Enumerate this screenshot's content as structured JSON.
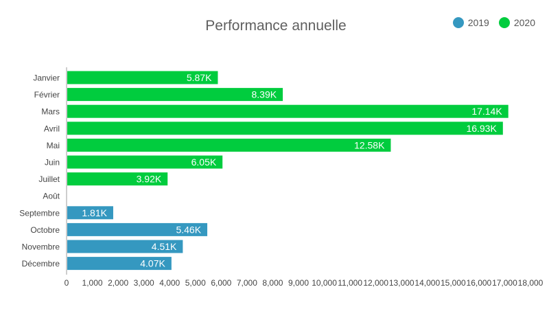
{
  "chart_data": {
    "type": "bar",
    "orientation": "horizontal",
    "title": "Performance annuelle",
    "legend": {
      "placement": "top-right"
    },
    "series": [
      {
        "name": "2019",
        "color": "#3598c0"
      },
      {
        "name": "2020",
        "color": "#01cc3e"
      }
    ],
    "categories": [
      "Janvier",
      "Février",
      "Mars",
      "Avril",
      "Mai",
      "Juin",
      "Juillet",
      "Août",
      "Septembre",
      "Octobre",
      "Novembre",
      "Décembre"
    ],
    "bars": [
      {
        "category": "Janvier",
        "series": "2020",
        "value": 5870,
        "label": "5.87K"
      },
      {
        "category": "Février",
        "series": "2020",
        "value": 8390,
        "label": "8.39K"
      },
      {
        "category": "Mars",
        "series": "2020",
        "value": 17140,
        "label": "17.14K"
      },
      {
        "category": "Avril",
        "series": "2020",
        "value": 16930,
        "label": "16.93K"
      },
      {
        "category": "Mai",
        "series": "2020",
        "value": 12580,
        "label": "12.58K"
      },
      {
        "category": "Juin",
        "series": "2020",
        "value": 6050,
        "label": "6.05K"
      },
      {
        "category": "Juillet",
        "series": "2020",
        "value": 3920,
        "label": "3.92K"
      },
      {
        "category": "Août",
        "series": null,
        "value": null,
        "label": ""
      },
      {
        "category": "Septembre",
        "series": "2019",
        "value": 1810,
        "label": "1.81K"
      },
      {
        "category": "Octobre",
        "series": "2019",
        "value": 5460,
        "label": "5.46K"
      },
      {
        "category": "Novembre",
        "series": "2019",
        "value": 4510,
        "label": "4.51K"
      },
      {
        "category": "Décembre",
        "series": "2019",
        "value": 4070,
        "label": "4.07K"
      }
    ],
    "x_axis": {
      "xlim": [
        0,
        18000
      ],
      "ticks": [
        0,
        1000,
        2000,
        3000,
        4000,
        5000,
        6000,
        7000,
        8000,
        9000,
        10000,
        11000,
        12000,
        13000,
        14000,
        15000,
        16000,
        17000,
        18000
      ],
      "tick_labels": [
        "0",
        "1,000",
        "2,000",
        "3,000",
        "4,000",
        "5,000",
        "6,000",
        "7,000",
        "8,000",
        "9,000",
        "10,000",
        "11,000",
        "12,000",
        "13,000",
        "14,000",
        "15,000",
        "16,000",
        "17,000",
        "18,000"
      ]
    },
    "grid": false
  }
}
